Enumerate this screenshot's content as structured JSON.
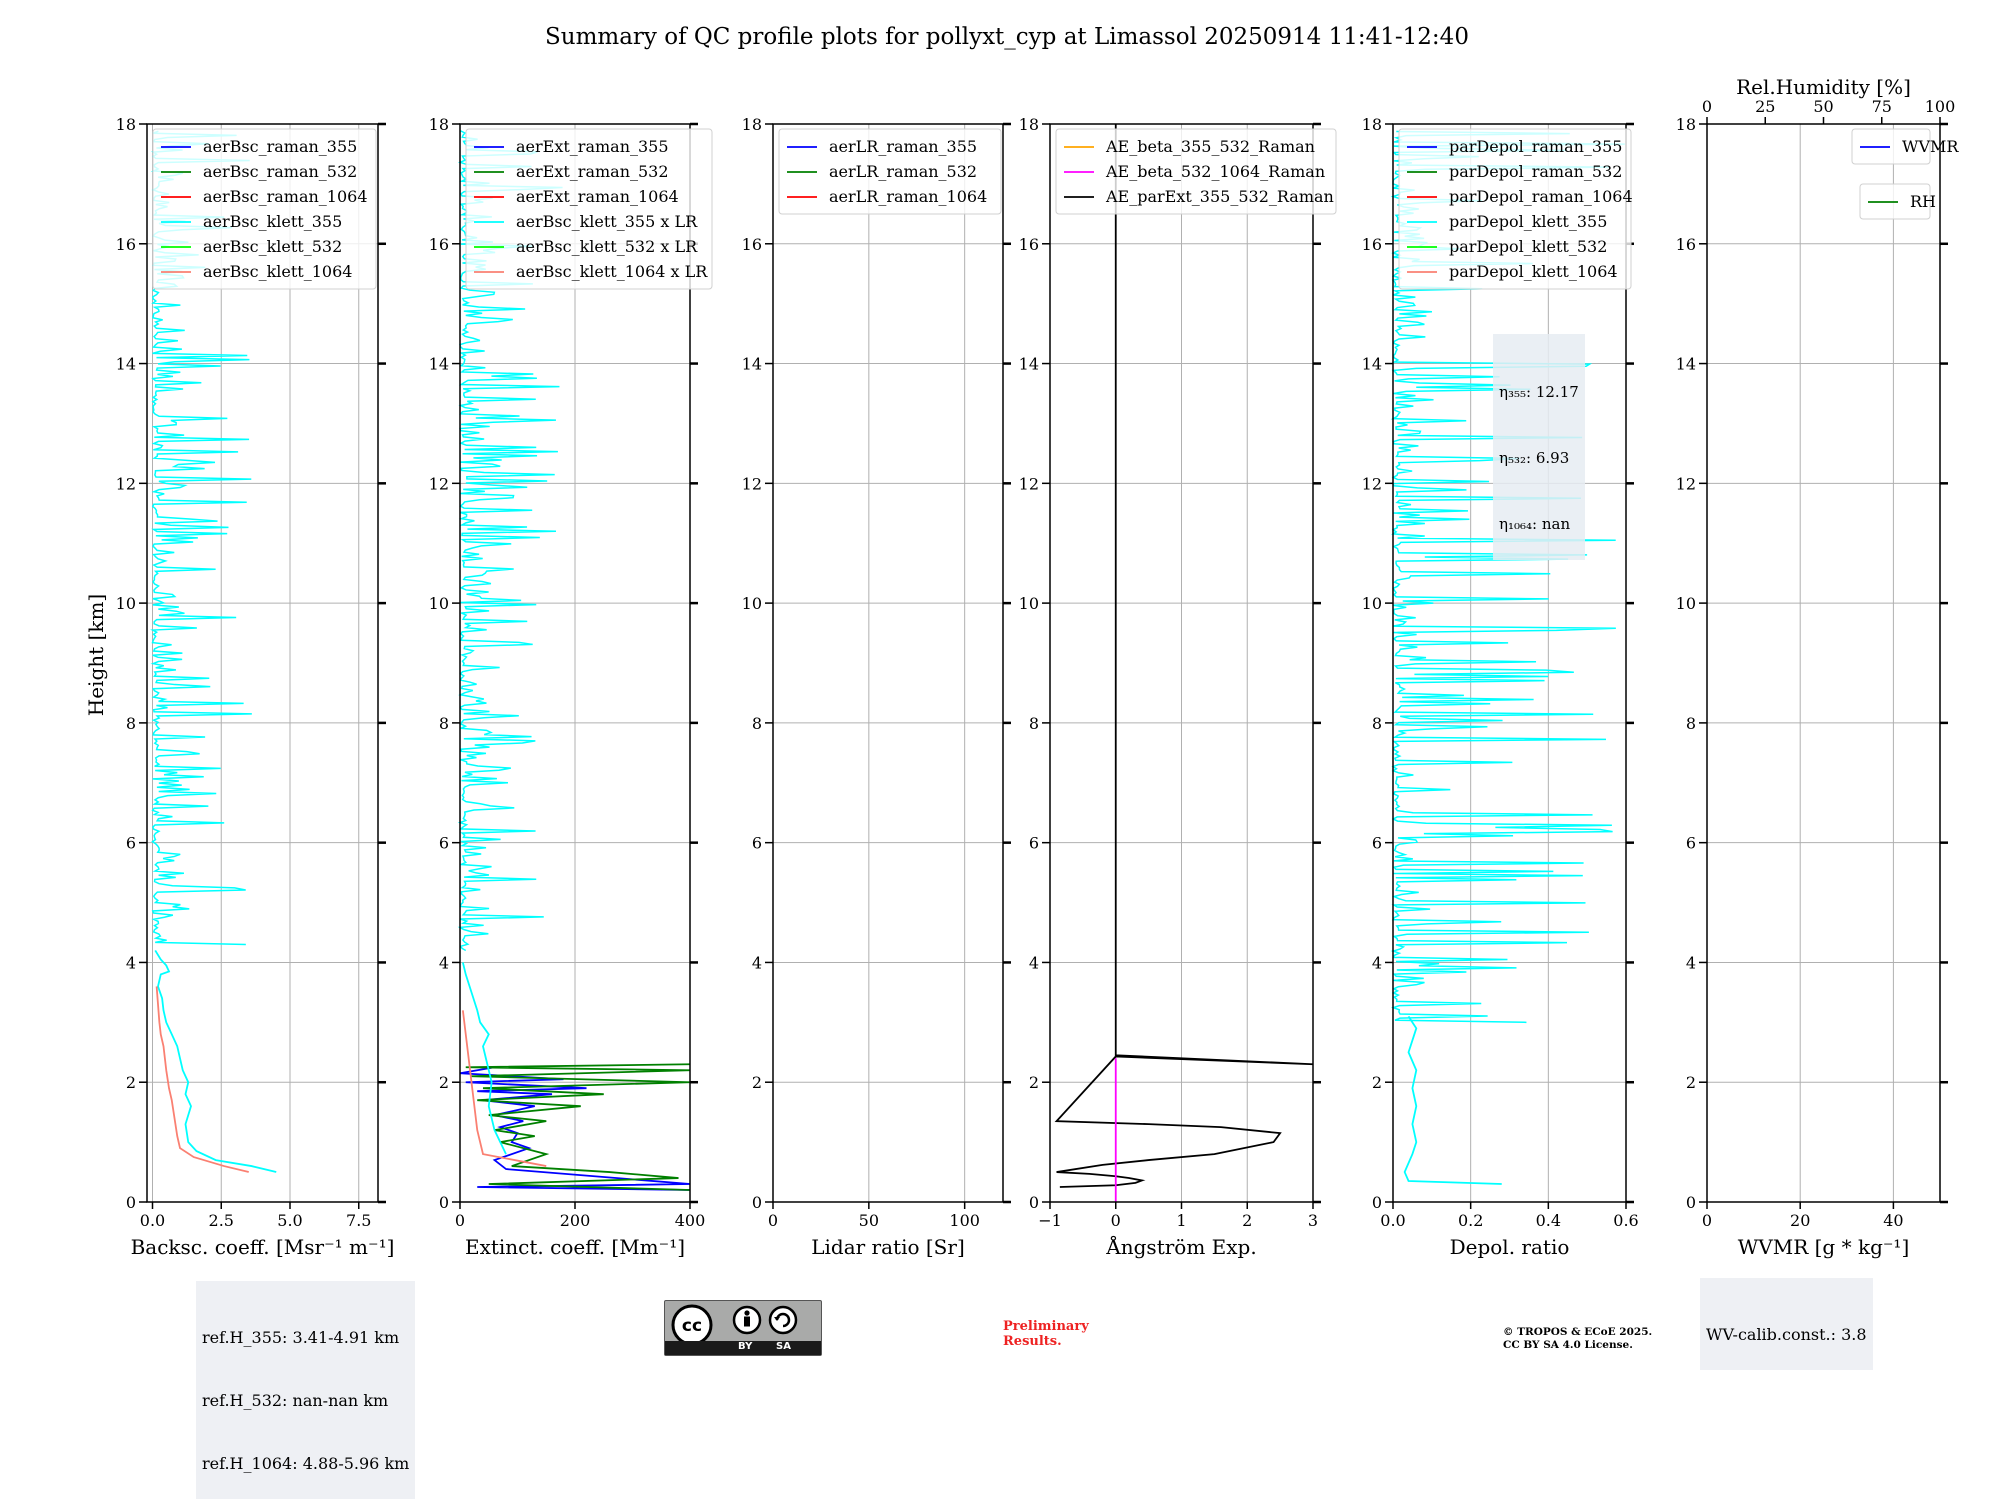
{
  "title": "Summary of QC profile plots for pollyxt_cyp at Limassol 20250914 11:41-12:40",
  "ylabel": "Height [km]",
  "colors": {
    "blue": "#0000ff",
    "green": "#008000",
    "red": "#ff0000",
    "cyan": "#00ffff",
    "lime": "#00ff00",
    "salmon": "#fa8072",
    "orange": "#ffa500",
    "magenta": "#ff00ff",
    "black": "#000000"
  },
  "chart_data": [
    {
      "type": "line",
      "id": "bsc",
      "xlabel": "Backsc. coeff. [Msr⁻¹ m⁻¹]",
      "xlim": [
        -0.2,
        8.2
      ],
      "ylim": [
        0,
        18
      ],
      "xticks": [
        0,
        2.5,
        5,
        7.5
      ],
      "xtick_labels": [
        "0.0",
        "2.5",
        "5.0",
        "7.5"
      ],
      "yticks": [
        0,
        2,
        4,
        6,
        8,
        10,
        12,
        14,
        16,
        18
      ],
      "legend": [
        "aerBsc_raman_355",
        "aerBsc_raman_532",
        "aerBsc_raman_1064",
        "aerBsc_klett_355",
        "aerBsc_klett_532",
        "aerBsc_klett_1064"
      ],
      "legend_colors": [
        "blue",
        "green",
        "red",
        "cyan",
        "lime",
        "salmon"
      ],
      "series": [
        {
          "name": "aerBsc_klett_355",
          "color": "cyan",
          "x": [
            4.5,
            3.6,
            2.3,
            1.6,
            1.3,
            1.2,
            1.4,
            1.2,
            1.3,
            1.1,
            1.0,
            0.9,
            0.7,
            0.5,
            0.4,
            0.35,
            0.2,
            0.3,
            0.6,
            0.5,
            0.3,
            0.1
          ],
          "y": [
            0.5,
            0.6,
            0.7,
            0.85,
            1.0,
            1.3,
            1.6,
            1.8,
            2.0,
            2.2,
            2.4,
            2.6,
            2.8,
            3.0,
            3.2,
            3.4,
            3.6,
            3.8,
            3.85,
            3.95,
            4.05,
            4.2
          ]
        },
        {
          "name": "aerBsc_klett_1064",
          "color": "salmon",
          "x": [
            3.5,
            2.6,
            1.5,
            1.0,
            0.9,
            0.8,
            0.7,
            0.6,
            0.5,
            0.45,
            0.4,
            0.3,
            0.25,
            0.2,
            0.15
          ],
          "y": [
            0.5,
            0.6,
            0.75,
            0.9,
            1.1,
            1.4,
            1.7,
            1.9,
            2.2,
            2.4,
            2.6,
            2.8,
            3.0,
            3.3,
            3.6
          ]
        }
      ],
      "noise_from_km": 4.3,
      "noise_color": "cyan"
    },
    {
      "type": "line",
      "id": "ext",
      "xlabel": "Extinct. coeff. [Mm⁻¹]",
      "xlim": [
        0,
        400
      ],
      "ylim": [
        0,
        18
      ],
      "xticks": [
        0,
        200,
        400
      ],
      "xtick_labels": [
        "0",
        "200",
        "400"
      ],
      "yticks": [
        0,
        2,
        4,
        6,
        8,
        10,
        12,
        14,
        16,
        18
      ],
      "legend": [
        "aerExt_raman_355",
        "aerExt_raman_532",
        "aerExt_raman_1064",
        "aerBsc_klett_355 x LR",
        "aerBsc_klett_532 x LR",
        "aerBsc_klett_1064 x LR"
      ],
      "legend_colors": [
        "blue",
        "green",
        "red",
        "cyan",
        "lime",
        "salmon"
      ],
      "series": [
        {
          "name": "aerExt_raman_355",
          "color": "blue",
          "x": [
            400,
            30,
            400,
            80,
            60,
            120,
            90,
            100,
            70,
            110,
            60,
            130,
            40,
            160,
            30,
            220,
            10,
            180,
            0,
            60
          ],
          "y": [
            0.2,
            0.25,
            0.3,
            0.55,
            0.7,
            0.9,
            1.0,
            1.15,
            1.25,
            1.35,
            1.45,
            1.6,
            1.7,
            1.8,
            1.85,
            1.9,
            2.0,
            2.05,
            2.15,
            2.25
          ]
        },
        {
          "name": "aerExt_raman_532",
          "color": "green",
          "x": [
            400,
            50,
            380,
            260,
            90,
            150,
            70,
            130,
            60,
            150,
            50,
            210,
            30,
            250,
            40,
            400,
            20,
            400,
            10,
            400
          ],
          "y": [
            0.2,
            0.3,
            0.4,
            0.5,
            0.6,
            0.8,
            1.0,
            1.1,
            1.2,
            1.35,
            1.45,
            1.6,
            1.7,
            1.8,
            1.9,
            2.0,
            2.1,
            2.2,
            2.25,
            2.3
          ]
        },
        {
          "name": "aerBsc_klett_355 x LR",
          "color": "cyan",
          "x": [
            80,
            60,
            50,
            55,
            45,
            40,
            50,
            35,
            30,
            20,
            10,
            5
          ],
          "y": [
            0.8,
            1.2,
            1.6,
            2.0,
            2.4,
            2.6,
            2.8,
            3.0,
            3.2,
            3.5,
            3.8,
            4.0
          ]
        },
        {
          "name": "aerBsc_klett_1064 x LR",
          "color": "salmon",
          "x": [
            150,
            40,
            30,
            25,
            20,
            15,
            10,
            5
          ],
          "y": [
            0.6,
            0.8,
            1.2,
            1.6,
            2.0,
            2.4,
            2.8,
            3.2
          ]
        }
      ],
      "noise_from_km": 4.2,
      "noise_color": "cyan"
    },
    {
      "type": "line",
      "id": "lr",
      "xlabel": "Lidar ratio [Sr]",
      "xlim": [
        0,
        120
      ],
      "ylim": [
        0,
        18
      ],
      "xticks": [
        0,
        50,
        100
      ],
      "xtick_labels": [
        "0",
        "50",
        "100"
      ],
      "yticks": [
        0,
        2,
        4,
        6,
        8,
        10,
        12,
        14,
        16,
        18
      ],
      "legend": [
        "aerLR_raman_355",
        "aerLR_raman_532",
        "aerLR_raman_1064"
      ],
      "legend_colors": [
        "blue",
        "green",
        "red"
      ],
      "series": []
    },
    {
      "type": "line",
      "id": "ae",
      "xlabel": "Ångström Exp.",
      "xlim": [
        -1,
        3
      ],
      "ylim": [
        0,
        18
      ],
      "xticks": [
        -1,
        0,
        1,
        2,
        3
      ],
      "xtick_labels": [
        "−1",
        "0",
        "1",
        "2",
        "3"
      ],
      "yticks": [
        0,
        2,
        4,
        6,
        8,
        10,
        12,
        14,
        16,
        18
      ],
      "legend": [
        "AE_beta_355_532_Raman",
        "AE_beta_532_1064_Raman",
        "AE_parExt_355_532_Raman"
      ],
      "legend_colors": [
        "orange",
        "magenta",
        "black"
      ],
      "series": [
        {
          "name": "AE_parExt_355_532_Raman",
          "color": "black",
          "x": [
            -0.85,
            0.0,
            0.3,
            0.4,
            0.2,
            0.0,
            -0.4,
            -0.9,
            -0.2,
            0.5,
            1.5,
            2.4,
            2.5,
            1.6,
            0.5,
            -0.9,
            0,
            3.0,
            0,
            0,
            0
          ],
          "y": [
            0.25,
            0.28,
            0.32,
            0.36,
            0.4,
            0.43,
            0.47,
            0.5,
            0.62,
            0.7,
            0.8,
            1.0,
            1.15,
            1.25,
            1.3,
            1.35,
            2.43,
            2.3,
            2.45,
            16.5,
            18
          ]
        },
        {
          "name": "AE_beta_532_1064_Raman",
          "color": "magenta",
          "x": [
            0,
            0
          ],
          "y": [
            0.0,
            2.4
          ]
        }
      ]
    },
    {
      "type": "line",
      "id": "depol",
      "xlabel": "Depol. ratio",
      "xlim": [
        0,
        0.6
      ],
      "ylim": [
        0,
        18
      ],
      "xticks": [
        0,
        0.2,
        0.4,
        0.6
      ],
      "xtick_labels": [
        "0.0",
        "0.2",
        "0.4",
        "0.6"
      ],
      "yticks": [
        0,
        2,
        4,
        6,
        8,
        10,
        12,
        14,
        16,
        18
      ],
      "legend": [
        "parDepol_raman_355",
        "parDepol_raman_532",
        "parDepol_raman_1064",
        "parDepol_klett_355",
        "parDepol_klett_532",
        "parDepol_klett_1064"
      ],
      "legend_colors": [
        "blue",
        "green",
        "red",
        "cyan",
        "lime",
        "salmon"
      ],
      "series": [
        {
          "name": "parDepol_klett_355",
          "color": "cyan",
          "x": [
            0.28,
            0.04,
            0.03,
            0.05,
            0.06,
            0.05,
            0.06,
            0.05,
            0.06,
            0.04,
            0.05,
            0.06,
            0.05,
            0.04
          ],
          "y": [
            0.3,
            0.35,
            0.5,
            0.8,
            1.0,
            1.3,
            1.6,
            1.9,
            2.2,
            2.5,
            2.7,
            2.9,
            3.0,
            3.1
          ]
        }
      ],
      "noise_from_km": 3.0,
      "noise_color": "cyan",
      "annotation": [
        "η355: 12.17",
        "η532: 6.93",
        "η1064: nan"
      ]
    },
    {
      "type": "line",
      "id": "wv",
      "xlabel": "WVMR [g * kg⁻¹]",
      "xlim": [
        0,
        50
      ],
      "ylim": [
        0,
        18
      ],
      "xticks": [
        0,
        20,
        40
      ],
      "xtick_labels": [
        "0",
        "20",
        "40"
      ],
      "yticks": [
        0,
        2,
        4,
        6,
        8,
        10,
        12,
        14,
        16,
        18
      ],
      "x2label": "Rel.Humidity [%]",
      "x2ticks": [
        0,
        25,
        50,
        75,
        100
      ],
      "x2tick_labels": [
        "0",
        "25",
        "50",
        "75",
        "100"
      ],
      "legend": [
        "WVMR"
      ],
      "legend_colors": [
        "blue"
      ],
      "legend2": [
        "RH"
      ],
      "legend2_colors": [
        "green"
      ],
      "series": []
    }
  ],
  "eta": {
    "l355": "η₃₅₅: 12.17",
    "l532": "η₅₃₂: 6.93",
    "l1064": "η₁₀₆₄: nan"
  },
  "ref_h": {
    "l355": "ref.H_355: 3.41-4.91 km",
    "l532": "ref.H_532: nan-nan km",
    "l1064": "ref.H_1064: 4.88-5.96 km"
  },
  "wv_calib": "WV-calib.const.: 3.8",
  "cc_badge": {
    "by": "BY",
    "sa": "SA"
  },
  "preliminary": "Preliminary\nResults.",
  "copyright": "© TROPOS & ECoE 2025.\nCC BY SA 4.0 License."
}
